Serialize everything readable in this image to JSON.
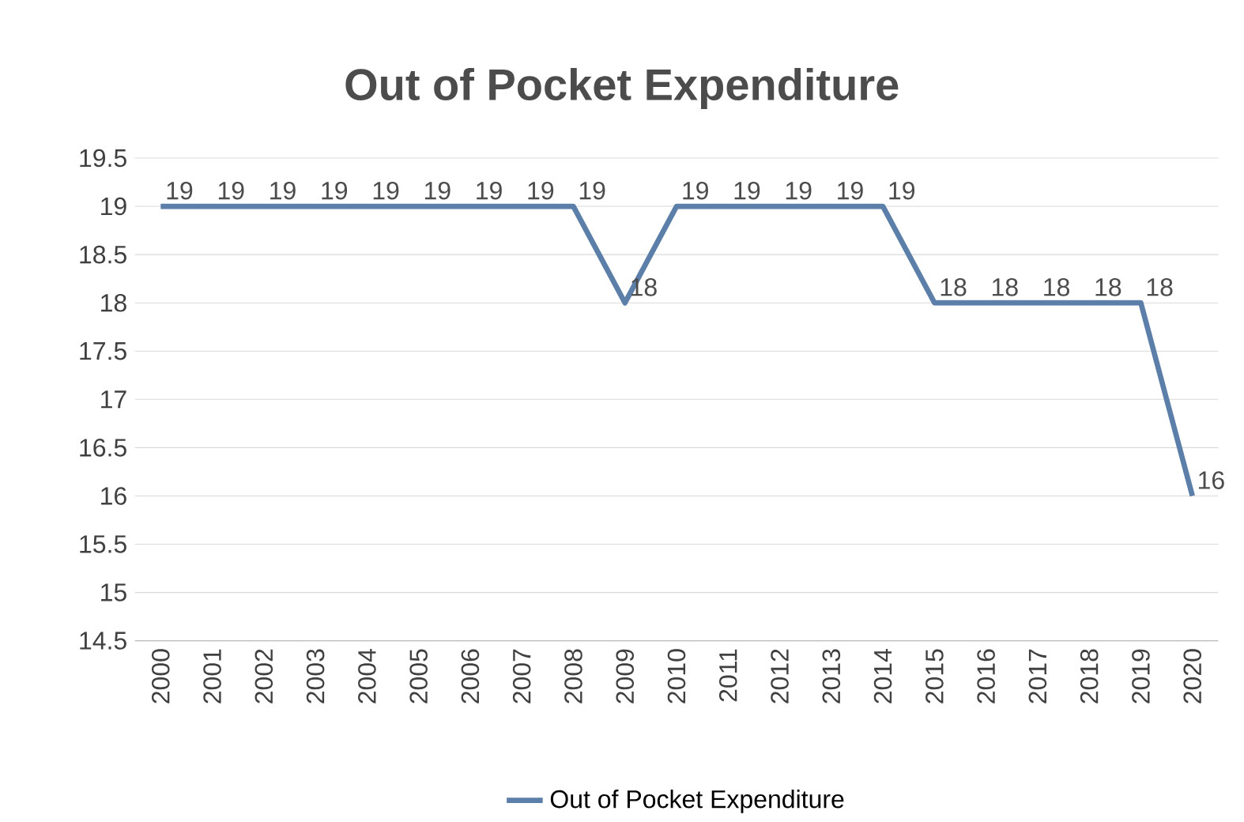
{
  "chart_data": {
    "type": "line",
    "title": "Out of Pocket Expenditure",
    "categories": [
      "2000",
      "2001",
      "2002",
      "2003",
      "2004",
      "2005",
      "2006",
      "2007",
      "2008",
      "2009",
      "2010",
      "2011",
      "2012",
      "2013",
      "2014",
      "2015",
      "2016",
      "2017",
      "2018",
      "2019",
      "2020"
    ],
    "series": [
      {
        "name": "Out of Pocket Expenditure",
        "color": "#5b7fa8",
        "values": [
          19,
          19,
          19,
          19,
          19,
          19,
          19,
          19,
          19,
          18,
          19,
          19,
          19,
          19,
          19,
          18,
          18,
          18,
          18,
          18,
          16
        ]
      }
    ],
    "ylim": [
      14.5,
      19.5
    ],
    "yticks": [
      14.5,
      15,
      15.5,
      16,
      16.5,
      17,
      17.5,
      18,
      18.5,
      19,
      19.5
    ],
    "grid": "y",
    "legend": "bottom",
    "data_labels": true,
    "marker": "none",
    "line_style": "solid"
  }
}
